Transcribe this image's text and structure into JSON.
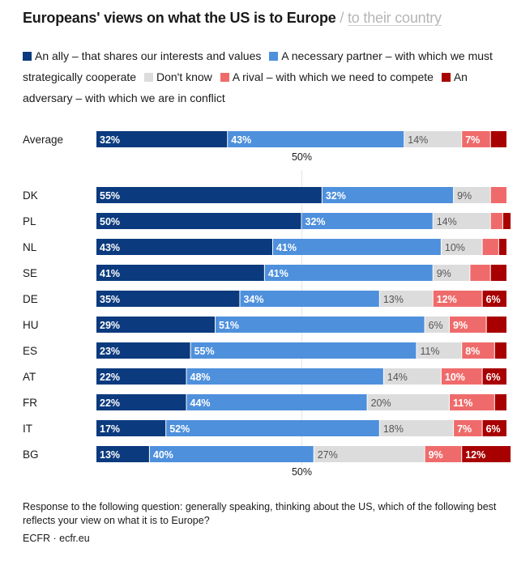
{
  "title": "Europeans' views on what the US is to Europe",
  "title_separator": "/",
  "subtitle_link": "to their country",
  "footer_note": "Response to the following question: generally speaking, thinking about the US, which of the following best reflects your view on what it is to Europe?",
  "source": "ECFR · ecfr.eu",
  "chart_data": {
    "type": "bar",
    "orientation": "horizontal",
    "stacked": true,
    "xlim": [
      0,
      100
    ],
    "midline_label": "50%",
    "legend": [
      "An ally – that shares our interests and values",
      "A necessary partner – with which we must strategically cooperate",
      "Don't know",
      "A rival – with which we need to compete",
      "An adversary – with which we are in conflict"
    ],
    "colors": [
      "#0b3a7e",
      "#4e90dc",
      "#dcdcdc",
      "#ef6b6b",
      "#a80000"
    ],
    "label_colors": [
      "#ffffff",
      "#ffffff",
      "#555555",
      "#ffffff",
      "#ffffff"
    ],
    "categories": [
      "Average",
      "DK",
      "PL",
      "NL",
      "SE",
      "DE",
      "HU",
      "ES",
      "AT",
      "FR",
      "IT",
      "BG"
    ],
    "series": [
      {
        "name": "An ally – that shares our interests and values",
        "values": [
          32,
          55,
          50,
          43,
          41,
          35,
          29,
          23,
          22,
          22,
          17,
          13
        ],
        "labels": [
          "32%",
          "55%",
          "50%",
          "43%",
          "41%",
          "35%",
          "29%",
          "23%",
          "22%",
          "22%",
          "17%",
          "13%"
        ]
      },
      {
        "name": "A necessary partner – with which we must strategically cooperate",
        "values": [
          43,
          32,
          32,
          41,
          41,
          34,
          51,
          55,
          48,
          44,
          52,
          40
        ],
        "labels": [
          "43%",
          "32%",
          "32%",
          "41%",
          "41%",
          "34%",
          "51%",
          "55%",
          "48%",
          "44%",
          "52%",
          "40%"
        ]
      },
      {
        "name": "Don't know",
        "values": [
          14,
          9,
          14,
          10,
          9,
          13,
          6,
          11,
          14,
          20,
          18,
          27
        ],
        "labels": [
          "14%",
          "9%",
          "14%",
          "10%",
          "9%",
          "13%",
          "6%",
          "11%",
          "14%",
          "20%",
          "18%",
          "27%"
        ]
      },
      {
        "name": "A rival – with which we need to compete",
        "values": [
          7,
          4,
          3,
          4,
          5,
          12,
          9,
          8,
          10,
          11,
          7,
          9
        ],
        "labels": [
          "7%",
          "",
          "",
          "",
          "",
          "12%",
          "9%",
          "8%",
          "10%",
          "11%",
          "7%",
          "9%"
        ]
      },
      {
        "name": "An adversary – with which we are in conflict",
        "values": [
          4,
          0,
          2,
          2,
          4,
          6,
          5,
          3,
          6,
          3,
          6,
          12
        ],
        "labels": [
          "",
          "",
          "",
          "",
          "",
          "6%",
          "",
          "",
          "6%",
          "",
          "6%",
          "12%"
        ]
      }
    ]
  }
}
